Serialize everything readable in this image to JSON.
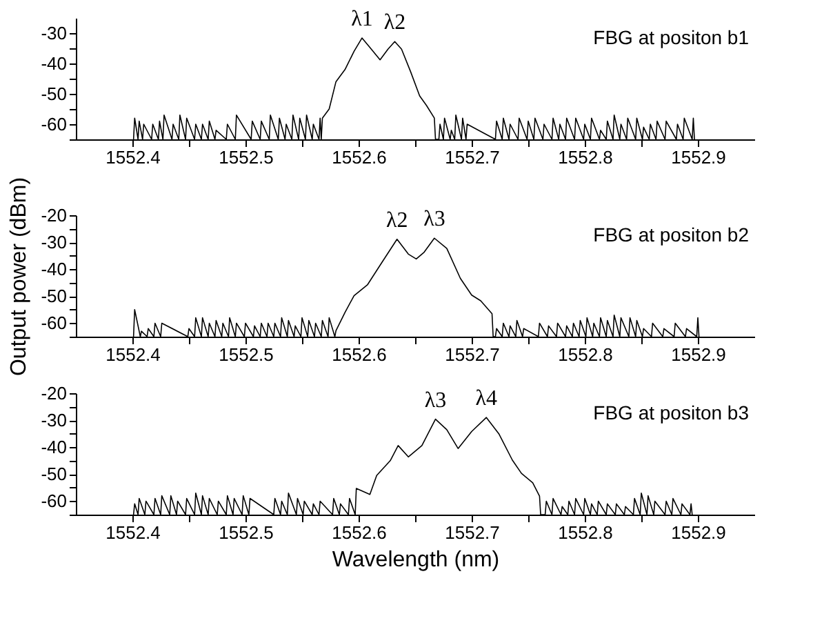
{
  "chart_data": [
    {
      "type": "line",
      "xlim": [
        1552.35,
        1552.95
      ],
      "ylim": [
        -65,
        -25
      ],
      "xticks": [
        1552.4,
        {
          "value": 1552.45,
          "label": null
        },
        1552.5,
        {
          "value": 1552.55,
          "label": null
        },
        1552.6,
        {
          "value": 1552.65,
          "label": null
        },
        1552.7,
        {
          "value": 1552.75,
          "label": null
        },
        1552.8,
        {
          "value": 1552.85,
          "label": null
        },
        1552.9
      ],
      "yticks": [
        {
          "value": -65,
          "label": null
        },
        -60,
        {
          "value": -55,
          "label": null
        },
        -50,
        {
          "value": -45,
          "label": null
        },
        -40,
        {
          "value": -35,
          "label": null
        },
        -30
      ],
      "grid": false,
      "legend": false,
      "annotations": [
        "FBG at positon b1",
        {
          "text": "λ1",
          "x": 1552.603,
          "y": -31.6
        },
        {
          "text": "λ2",
          "x": 1552.632,
          "y": -32.8
        }
      ],
      "series": [
        {
          "color": "#000000",
          "x": [
            1552.401,
            1552.402,
            1552.405,
            1552.406,
            1552.409,
            1552.41,
            1552.417,
            1552.418,
            1552.423,
            1552.424,
            1552.427,
            1552.428,
            1552.435,
            1552.436,
            1552.441,
            1552.442,
            1552.447,
            1552.448,
            1552.455,
            1552.456,
            1552.461,
            1552.462,
            1552.467,
            1552.468,
            1552.473,
            1552.474,
            1552.483,
            1552.484,
            1552.491,
            1552.492,
            1552.505,
            1552.506,
            1552.513,
            1552.514,
            1552.521,
            1552.522,
            1552.529,
            1552.53,
            1552.535,
            1552.536,
            1552.541,
            1552.542,
            1552.547,
            1552.548,
            1552.553,
            1552.554,
            1552.559,
            1552.56,
            1552.565,
            1552.566,
            1552.567,
            1552.568,
            1552.574,
            1552.58,
            1552.588,
            1552.596,
            1552.603,
            1552.61,
            1552.619,
            1552.626,
            1552.632,
            1552.638,
            1552.646,
            1552.654,
            1552.66,
            1552.667,
            1552.668,
            1552.671,
            1552.672,
            1552.675,
            1552.676,
            1552.681,
            1552.682,
            1552.685,
            1552.686,
            1552.691,
            1552.692,
            1552.695,
            1552.696,
            1552.721,
            1552.722,
            1552.727,
            1552.728,
            1552.733,
            1552.734,
            1552.741,
            1552.742,
            1552.749,
            1552.75,
            1552.755,
            1552.756,
            1552.763,
            1552.764,
            1552.771,
            1552.772,
            1552.777,
            1552.778,
            1552.783,
            1552.784,
            1552.791,
            1552.792,
            1552.799,
            1552.8,
            1552.805,
            1552.806,
            1552.813,
            1552.814,
            1552.819,
            1552.82,
            1552.825,
            1552.826,
            1552.831,
            1552.832,
            1552.837,
            1552.838,
            1552.845,
            1552.846,
            1552.851,
            1552.852,
            1552.857,
            1552.858,
            1552.863,
            1552.864,
            1552.871,
            1552.872,
            1552.881,
            1552.882,
            1552.887,
            1552.888,
            1552.895,
            1552.896,
            1552.897
          ],
          "values": [
            -65,
            -58,
            -65,
            -59,
            -65,
            -60,
            -65,
            -60,
            -65,
            -59,
            -65,
            -57,
            -65,
            -60,
            -65,
            -57,
            -65,
            -58,
            -65,
            -60,
            -65,
            -60,
            -65,
            -59,
            -65,
            -62,
            -65,
            -60,
            -65,
            -57,
            -65,
            -59,
            -65,
            -59,
            -65,
            -57,
            -65,
            -58,
            -65,
            -60,
            -65,
            -57,
            -65,
            -58,
            -65,
            -57,
            -65,
            -60,
            -65,
            -58,
            -65,
            -58,
            -55,
            -46,
            -42,
            -36,
            -31.6,
            -34.7,
            -38.8,
            -35.3,
            -32.8,
            -35.3,
            -42.7,
            -50.7,
            -53.8,
            -58,
            -65,
            -65,
            -60,
            -65,
            -58,
            -65,
            -62,
            -65,
            -57,
            -65,
            -58,
            -65,
            -60,
            -65,
            -59,
            -65,
            -58,
            -65,
            -60,
            -65,
            -58,
            -65,
            -59,
            -65,
            -58,
            -65,
            -60,
            -65,
            -58,
            -65,
            -60,
            -65,
            -58,
            -65,
            -58,
            -65,
            -60,
            -65,
            -58,
            -65,
            -62,
            -65,
            -59,
            -65,
            -57,
            -65,
            -60,
            -65,
            -58,
            -65,
            -58,
            -65,
            -61,
            -65,
            -60,
            -65,
            -59,
            -65,
            -59,
            -65,
            -60,
            -65,
            -58,
            -65,
            -58,
            -65
          ]
        }
      ]
    },
    {
      "type": "line",
      "xlim": [
        1552.35,
        1552.95
      ],
      "ylim": [
        -65,
        -20
      ],
      "ylabel": "Output power (dBm)",
      "xticks": [
        1552.4,
        {
          "value": 1552.45,
          "label": null
        },
        1552.5,
        {
          "value": 1552.55,
          "label": null
        },
        1552.6,
        {
          "value": 1552.65,
          "label": null
        },
        1552.7,
        {
          "value": 1552.75,
          "label": null
        },
        1552.8,
        {
          "value": 1552.85,
          "label": null
        },
        1552.9
      ],
      "yticks": [
        {
          "value": -65,
          "label": null
        },
        -60,
        {
          "value": -55,
          "label": null
        },
        -50,
        {
          "value": -45,
          "label": null
        },
        -40,
        {
          "value": -35,
          "label": null
        },
        -30,
        {
          "value": -25,
          "label": null
        },
        -20
      ],
      "grid": false,
      "legend": false,
      "annotations": [
        "FBG at positon b2",
        {
          "text": "λ2",
          "x": 1552.634,
          "y": -28.9
        },
        {
          "text": "λ3",
          "x": 1552.667,
          "y": -28.5
        }
      ],
      "series": [
        {
          "color": "#000000",
          "x": [
            1552.401,
            1552.402,
            1552.407,
            1552.408,
            1552.413,
            1552.414,
            1552.419,
            1552.42,
            1552.425,
            1552.426,
            1552.449,
            1552.45,
            1552.455,
            1552.456,
            1552.461,
            1552.462,
            1552.467,
            1552.468,
            1552.473,
            1552.474,
            1552.479,
            1552.48,
            1552.485,
            1552.486,
            1552.491,
            1552.492,
            1552.499,
            1552.5,
            1552.507,
            1552.508,
            1552.513,
            1552.514,
            1552.519,
            1552.52,
            1552.525,
            1552.526,
            1552.531,
            1552.532,
            1552.537,
            1552.538,
            1552.543,
            1552.544,
            1552.549,
            1552.55,
            1552.555,
            1552.556,
            1552.561,
            1552.562,
            1552.567,
            1552.568,
            1552.573,
            1552.574,
            1552.579,
            1552.58,
            1552.588,
            1552.596,
            1552.608,
            1552.62,
            1552.634,
            1552.644,
            1552.651,
            1552.658,
            1552.667,
            1552.678,
            1552.69,
            1552.7,
            1552.708,
            1552.718,
            1552.719,
            1552.721,
            1552.722,
            1552.727,
            1552.728,
            1552.733,
            1552.734,
            1552.739,
            1552.74,
            1552.745,
            1552.746,
            1552.759,
            1552.76,
            1552.767,
            1552.768,
            1552.775,
            1552.776,
            1552.783,
            1552.784,
            1552.789,
            1552.79,
            1552.795,
            1552.796,
            1552.801,
            1552.802,
            1552.807,
            1552.808,
            1552.813,
            1552.814,
            1552.819,
            1552.82,
            1552.825,
            1552.826,
            1552.831,
            1552.832,
            1552.839,
            1552.84,
            1552.845,
            1552.846,
            1552.851,
            1552.852,
            1552.859,
            1552.86,
            1552.869,
            1552.87,
            1552.879,
            1552.88,
            1552.889,
            1552.89,
            1552.899,
            1552.9,
            1552.901
          ],
          "values": [
            -65,
            -55,
            -65,
            -63,
            -65,
            -62,
            -65,
            -60,
            -65,
            -60,
            -65,
            -62,
            -65,
            -58,
            -65,
            -58,
            -65,
            -60,
            -65,
            -59,
            -65,
            -60,
            -65,
            -58,
            -65,
            -60,
            -65,
            -60,
            -65,
            -61,
            -65,
            -60,
            -65,
            -60,
            -65,
            -60,
            -65,
            -58,
            -65,
            -59,
            -65,
            -61,
            -65,
            -58,
            -65,
            -59,
            -65,
            -60,
            -65,
            -59,
            -65,
            -58,
            -65,
            -62.8,
            -56,
            -49.8,
            -45.7,
            -37.9,
            -28.9,
            -34.4,
            -36.2,
            -33.7,
            -28.5,
            -32.3,
            -43.4,
            -49.6,
            -51.7,
            -56.5,
            -65,
            -65,
            -62,
            -65,
            -60,
            -65,
            -61,
            -65,
            -59,
            -65,
            -62,
            -65,
            -60,
            -65,
            -61,
            -65,
            -60,
            -65,
            -61,
            -65,
            -60,
            -65,
            -59,
            -65,
            -58,
            -65,
            -60,
            -65,
            -58,
            -65,
            -59,
            -65,
            -57,
            -65,
            -58,
            -65,
            -58,
            -65,
            -59,
            -65,
            -62,
            -65,
            -60,
            -65,
            -62,
            -65,
            -60,
            -65,
            -62,
            -65,
            -58,
            -65
          ]
        }
      ]
    },
    {
      "type": "line",
      "xlim": [
        1552.35,
        1552.95
      ],
      "ylim": [
        -65,
        -20
      ],
      "xlabel": "Wavelength (nm)",
      "xticks": [
        1552.4,
        {
          "value": 1552.45,
          "label": null
        },
        1552.5,
        {
          "value": 1552.55,
          "label": null
        },
        1552.6,
        {
          "value": 1552.65,
          "label": null
        },
        1552.7,
        {
          "value": 1552.75,
          "label": null
        },
        1552.8,
        {
          "value": 1552.85,
          "label": null
        },
        1552.9
      ],
      "yticks": [
        {
          "value": -65,
          "label": null
        },
        -60,
        {
          "value": -55,
          "label": null
        },
        -50,
        {
          "value": -45,
          "label": null
        },
        -40,
        {
          "value": -35,
          "label": null
        },
        -30,
        {
          "value": -25,
          "label": null
        },
        -20
      ],
      "grid": false,
      "legend": false,
      "annotations": [
        "FBG at positon b3",
        {
          "text": "λ3",
          "x": 1552.668,
          "y": -29.6
        },
        {
          "text": "λ4",
          "x": 1552.713,
          "y": -29
        }
      ],
      "series": [
        {
          "color": "#000000",
          "x": [
            1552.401,
            1552.402,
            1552.405,
            1552.406,
            1552.411,
            1552.412,
            1552.419,
            1552.42,
            1552.425,
            1552.426,
            1552.433,
            1552.434,
            1552.439,
            1552.44,
            1552.447,
            1552.448,
            1552.455,
            1552.456,
            1552.461,
            1552.462,
            1552.467,
            1552.468,
            1552.475,
            1552.476,
            1552.483,
            1552.484,
            1552.489,
            1552.49,
            1552.497,
            1552.498,
            1552.503,
            1552.504,
            1552.525,
            1552.526,
            1552.531,
            1552.532,
            1552.537,
            1552.538,
            1552.545,
            1552.546,
            1552.551,
            1552.552,
            1552.559,
            1552.56,
            1552.565,
            1552.566,
            1552.577,
            1552.578,
            1552.583,
            1552.584,
            1552.591,
            1552.592,
            1552.597,
            1552.598,
            1552.61,
            1552.616,
            1552.628,
            1552.635,
            1552.644,
            1552.656,
            1552.668,
            1552.678,
            1552.688,
            1552.7,
            1552.713,
            1552.724,
            1552.736,
            1552.744,
            1552.754,
            1552.76,
            1552.761,
            1552.765,
            1552.766,
            1552.771,
            1552.772,
            1552.779,
            1552.78,
            1552.785,
            1552.786,
            1552.791,
            1552.792,
            1552.799,
            1552.8,
            1552.805,
            1552.806,
            1552.811,
            1552.812,
            1552.819,
            1552.82,
            1552.827,
            1552.828,
            1552.835,
            1552.836,
            1552.843,
            1552.844,
            1552.849,
            1552.85,
            1552.855,
            1552.856,
            1552.861,
            1552.862,
            1552.871,
            1552.872,
            1552.877,
            1552.878,
            1552.885,
            1552.886,
            1552.893,
            1552.894,
            1552.895
          ],
          "values": [
            -65,
            -61,
            -65,
            -59,
            -65,
            -60,
            -65,
            -59,
            -65,
            -58,
            -65,
            -58,
            -65,
            -60,
            -65,
            -59,
            -65,
            -57,
            -65,
            -58,
            -65,
            -59,
            -65,
            -60,
            -65,
            -58,
            -65,
            -59,
            -65,
            -58,
            -65,
            -59,
            -65,
            -59,
            -65,
            -60,
            -65,
            -57,
            -65,
            -59,
            -65,
            -60,
            -65,
            -61,
            -65,
            -60,
            -65,
            -59,
            -65,
            -61,
            -65,
            -59,
            -65,
            -55.3,
            -57.5,
            -50.5,
            -45,
            -39.4,
            -43.6,
            -39.4,
            -29.6,
            -33.5,
            -40.5,
            -34.2,
            -29,
            -35,
            -44.8,
            -49.7,
            -53.2,
            -58.1,
            -65,
            -65,
            -60,
            -65,
            -59,
            -65,
            -62,
            -65,
            -60,
            -65,
            -59,
            -65,
            -59,
            -65,
            -61,
            -65,
            -60,
            -65,
            -61,
            -65,
            -61,
            -65,
            -62,
            -65,
            -59,
            -65,
            -57,
            -65,
            -58,
            -65,
            -60,
            -65,
            -60,
            -65,
            -59,
            -65,
            -61,
            -65,
            -61,
            -65
          ]
        }
      ]
    }
  ]
}
